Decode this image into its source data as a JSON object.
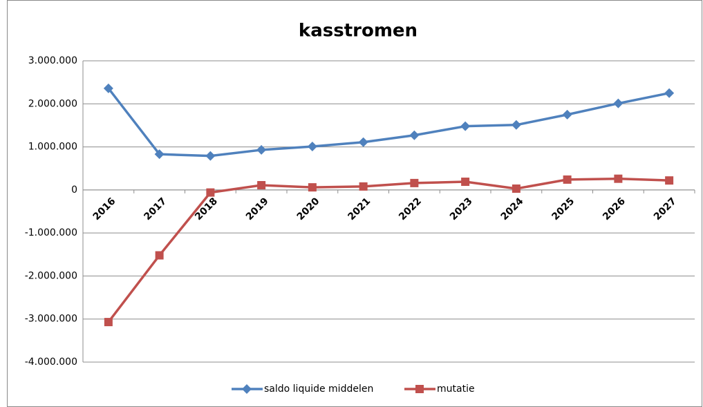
{
  "chart_data": {
    "type": "line",
    "title": "kasstromen",
    "categories": [
      "2016",
      "2017",
      "2018",
      "2019",
      "2020",
      "2021",
      "2022",
      "2023",
      "2024",
      "2025",
      "2026",
      "2027"
    ],
    "series": [
      {
        "name": "saldo liquide middelen",
        "color": "#4f81bd",
        "marker": "diamond",
        "values": [
          2360000,
          830000,
          790000,
          930000,
          1010000,
          1110000,
          1270000,
          1480000,
          1510000,
          1750000,
          2010000,
          2250000
        ]
      },
      {
        "name": "mutatie",
        "color": "#c0504d",
        "marker": "square",
        "values": [
          -3070000,
          -1520000,
          -60000,
          110000,
          60000,
          80000,
          160000,
          190000,
          30000,
          240000,
          260000,
          220000
        ]
      }
    ],
    "ylim": [
      -4000000,
      3000000
    ],
    "yticks": [
      {
        "value": -4000000,
        "label": "-4.000.000"
      },
      {
        "value": -3000000,
        "label": "-3.000.000"
      },
      {
        "value": -2000000,
        "label": "-2.000.000"
      },
      {
        "value": -1000000,
        "label": "-1.000.000"
      },
      0,
      {
        "value": 1000000,
        "label": "1.000.000"
      },
      {
        "value": 2000000,
        "label": "2.000.000"
      },
      {
        "value": 3000000,
        "label": "3.000.000"
      }
    ],
    "grid": true,
    "legend": "bottom"
  }
}
